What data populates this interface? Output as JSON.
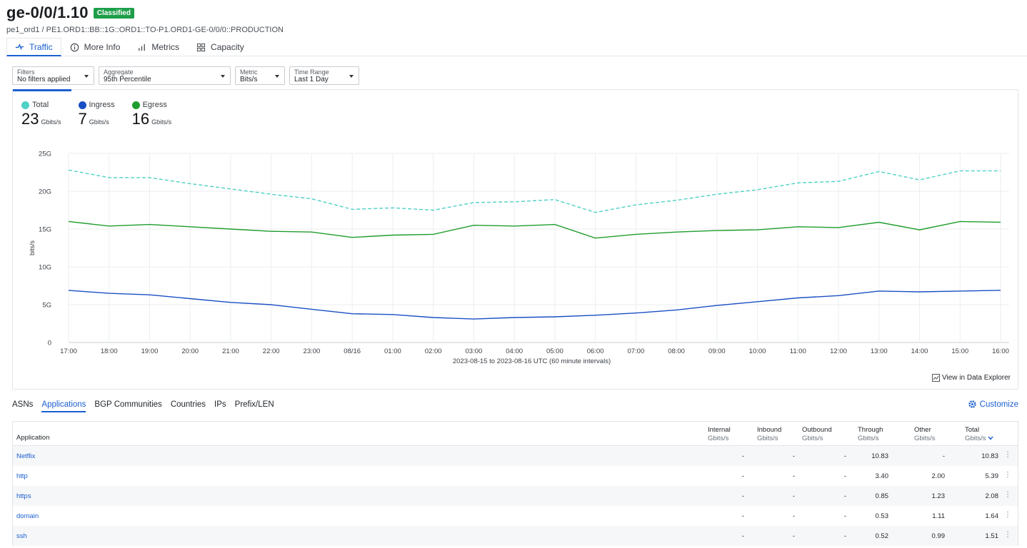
{
  "header": {
    "title": "ge-0/0/1.10",
    "badge": "Classified",
    "breadcrumb": "pe1_ord1 / PE1.ORD1::BB::1G::ORD1::TO-P1.ORD1-GE-0/0/0::PRODUCTION"
  },
  "tabs": [
    {
      "label": "Traffic",
      "icon": "traffic-icon"
    },
    {
      "label": "More Info",
      "icon": "info-icon"
    },
    {
      "label": "Metrics",
      "icon": "bar-chart-icon"
    },
    {
      "label": "Capacity",
      "icon": "grid-icon"
    }
  ],
  "filters": [
    {
      "label": "Filters",
      "value": "No filters applied"
    },
    {
      "label": "Aggregate",
      "value": "95th Percentile"
    },
    {
      "label": "Metric",
      "value": "Bits/s"
    },
    {
      "label": "Time Range",
      "value": "Last 1 Day"
    }
  ],
  "legend": [
    {
      "label": "Total",
      "value": "23",
      "unit": "Gbits/s",
      "color": "#4fd1c5"
    },
    {
      "label": "Ingress",
      "value": "7",
      "unit": "Gbits/s",
      "color": "#1a4fc4"
    },
    {
      "label": "Egress",
      "value": "16",
      "unit": "Gbits/s",
      "color": "#1f9d2c"
    }
  ],
  "chart_data": {
    "type": "line",
    "ylabel": "bits/s",
    "xlabel": "2023-08-15 to 2023-08-16 UTC (60 minute intervals)",
    "ylim": [
      0,
      25
    ],
    "yticks": [
      "0",
      "5G",
      "10G",
      "15G",
      "20G",
      "25G"
    ],
    "categories": [
      "17:00",
      "18:00",
      "19:00",
      "20:00",
      "21:00",
      "22:00",
      "23:00",
      "08/16",
      "01:00",
      "02:00",
      "03:00",
      "04:00",
      "05:00",
      "06:00",
      "07:00",
      "08:00",
      "09:00",
      "10:00",
      "11:00",
      "12:00",
      "13:00",
      "14:00",
      "15:00",
      "16:00"
    ],
    "series": [
      {
        "name": "Total",
        "color": "#4fd1c5",
        "dashed": true,
        "values": [
          22.8,
          21.8,
          21.8,
          21.0,
          20.3,
          19.6,
          19.0,
          17.6,
          17.8,
          17.5,
          18.5,
          18.6,
          18.9,
          17.2,
          18.2,
          18.8,
          19.6,
          20.2,
          21.1,
          21.3,
          22.6,
          21.5,
          22.7,
          22.7
        ]
      },
      {
        "name": "Egress",
        "color": "#1f9d2c",
        "dashed": false,
        "values": [
          16.0,
          15.4,
          15.6,
          15.3,
          15.0,
          14.7,
          14.6,
          13.9,
          14.2,
          14.3,
          15.5,
          15.4,
          15.6,
          13.8,
          14.3,
          14.6,
          14.8,
          14.9,
          15.3,
          15.2,
          15.9,
          14.9,
          16.0,
          15.9
        ]
      },
      {
        "name": "Ingress",
        "color": "#1a4fc4",
        "dashed": false,
        "values": [
          6.9,
          6.5,
          6.3,
          5.8,
          5.3,
          5.0,
          4.4,
          3.8,
          3.7,
          3.3,
          3.1,
          3.3,
          3.4,
          3.6,
          3.9,
          4.3,
          4.9,
          5.4,
          5.9,
          6.2,
          6.8,
          6.7,
          6.8,
          6.9
        ]
      }
    ]
  },
  "view_explorer": "View in Data Explorer",
  "subtabs": [
    "ASNs",
    "Applications",
    "BGP Communities",
    "Countries",
    "IPs",
    "Prefix/LEN"
  ],
  "customize": "Customize",
  "table": {
    "columns": [
      {
        "label": "Application",
        "unit": ""
      },
      {
        "label": "Internal",
        "unit": "Gbits/s"
      },
      {
        "label": "Inbound",
        "unit": "Gbits/s"
      },
      {
        "label": "Outbound",
        "unit": "Gbits/s"
      },
      {
        "label": "Through",
        "unit": "Gbits/s"
      },
      {
        "label": "Other",
        "unit": "Gbits/s"
      },
      {
        "label": "Total",
        "unit": "Gbits/s"
      }
    ],
    "rows": [
      {
        "app": "Netflix",
        "internal": "-",
        "inbound": "-",
        "outbound": "-",
        "through": "10.83",
        "other": "-",
        "total": "10.83"
      },
      {
        "app": "http",
        "internal": "-",
        "inbound": "-",
        "outbound": "-",
        "through": "3.40",
        "other": "2.00",
        "total": "5.39"
      },
      {
        "app": "https",
        "internal": "-",
        "inbound": "-",
        "outbound": "-",
        "through": "0.85",
        "other": "1.23",
        "total": "2.08"
      },
      {
        "app": "domain",
        "internal": "-",
        "inbound": "-",
        "outbound": "-",
        "through": "0.53",
        "other": "1.11",
        "total": "1.64"
      },
      {
        "app": "ssh",
        "internal": "-",
        "inbound": "-",
        "outbound": "-",
        "through": "0.52",
        "other": "0.99",
        "total": "1.51"
      }
    ]
  }
}
